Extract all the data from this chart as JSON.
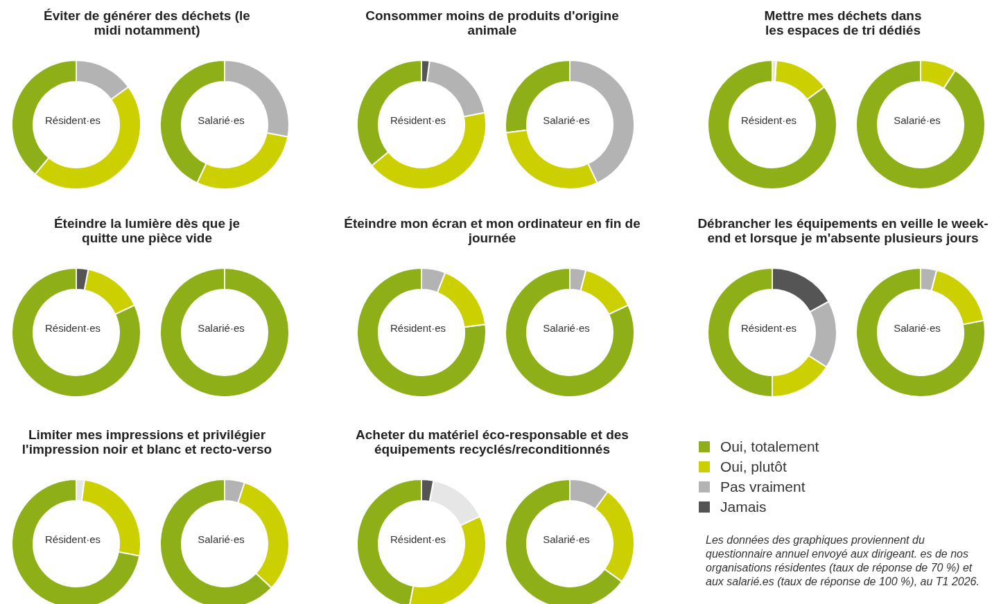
{
  "chart_data": [
    {
      "type": "donut",
      "title": "Éviter de générer des déchets (le midi notamment)",
      "categories": [
        null,
        null,
        null,
        null,
        null
      ],
      "colors": [
        "#8faf18",
        "#cdd000",
        "#b3b3b3",
        "#e6e6e6",
        "#555555"
      ],
      "series": [
        {
          "name": "Résident·es",
          "values": [
            39,
            46,
            15,
            0,
            0
          ]
        },
        {
          "name": "Salarié·es",
          "values": [
            43,
            29,
            28,
            0,
            0
          ]
        }
      ]
    },
    {
      "type": "donut",
      "title": "Consommer moins de produits d'origine animale",
      "categories": [
        null,
        null,
        null,
        null,
        null
      ],
      "colors": [
        "#8faf18",
        "#cdd000",
        "#b3b3b3",
        "#e6e6e6",
        "#555555"
      ],
      "series": [
        {
          "name": "Résident·es",
          "values": [
            36,
            42,
            20,
            0,
            2
          ]
        },
        {
          "name": "Salarié·es",
          "values": [
            27,
            30,
            43,
            0,
            0
          ]
        }
      ]
    },
    {
      "type": "donut",
      "title": "Mettre mes déchets dans les espaces de tri dédiés",
      "categories": [
        null,
        null,
        null,
        null,
        null
      ],
      "colors": [
        "#8faf18",
        "#cdd000",
        "#b3b3b3",
        "#e6e6e6",
        "#555555"
      ],
      "series": [
        {
          "name": "Résident·es",
          "values": [
            85,
            14,
            0,
            1,
            0
          ]
        },
        {
          "name": "Salarié·es",
          "values": [
            91,
            9,
            0,
            0,
            0
          ]
        }
      ]
    },
    {
      "type": "donut",
      "title": "Éteindre la lumière dès que je quitte une pièce vide",
      "categories": [
        null,
        null,
        null,
        null,
        null
      ],
      "colors": [
        "#8faf18",
        "#cdd000",
        "#b3b3b3",
        "#e6e6e6",
        "#555555"
      ],
      "series": [
        {
          "name": "Résident·es",
          "values": [
            82,
            15,
            0,
            0,
            3
          ]
        },
        {
          "name": "Salarié·es",
          "values": [
            100,
            0,
            0,
            0,
            0
          ]
        }
      ]
    },
    {
      "type": "donut",
      "title": "Éteindre mon écran et mon ordinateur en fin de journée",
      "categories": [
        null,
        null,
        null,
        null,
        null
      ],
      "colors": [
        "#8faf18",
        "#cdd000",
        "#b3b3b3",
        "#e6e6e6",
        "#555555"
      ],
      "series": [
        {
          "name": "Résident·es",
          "values": [
            77,
            17,
            6,
            0,
            0
          ]
        },
        {
          "name": "Salarié·es",
          "values": [
            82,
            14,
            4,
            0,
            0
          ]
        }
      ]
    },
    {
      "type": "donut",
      "title": "Débrancher les équipements en veille le week-end et lorsque je m'absente plusieurs jours",
      "categories": [
        null,
        null,
        null,
        null,
        null
      ],
      "colors": [
        "#8faf18",
        "#cdd000",
        "#b3b3b3",
        "#e6e6e6",
        "#555555"
      ],
      "series": [
        {
          "name": "Résident·es",
          "values": [
            50,
            16,
            17,
            0,
            17
          ]
        },
        {
          "name": "Salarié·es",
          "values": [
            78,
            18,
            4,
            0,
            0
          ]
        }
      ]
    },
    {
      "type": "donut",
      "title": "Limiter mes impressions et privilégier l'impression noir et blanc et recto-verso",
      "categories": [
        null,
        null,
        null,
        null,
        null
      ],
      "colors": [
        "#8faf18",
        "#cdd000",
        "#b3b3b3",
        "#e6e6e6",
        "#555555"
      ],
      "series": [
        {
          "name": "Résident·es",
          "values": [
            72,
            26,
            0,
            2,
            0
          ]
        },
        {
          "name": "Salarié·es",
          "values": [
            63,
            32,
            5,
            0,
            0
          ]
        }
      ]
    },
    {
      "type": "donut",
      "title": "Acheter du matériel éco-responsable et des équipements recyclés/reconditionnés",
      "categories": [
        "Oui, totalement",
        "Oui, plutôt",
        "Pas vraiment",
        null,
        "Jamais"
      ],
      "colors": [
        "#8faf18",
        "#cdd000",
        "#b3b3b3",
        "#e6e6e6",
        "#555555"
      ],
      "series": [
        {
          "name": "Résident·es",
          "values": [
            47,
            35,
            0,
            15,
            3
          ]
        },
        {
          "name": "Salarié·es",
          "values": [
            65,
            25,
            10,
            0,
            0
          ]
        }
      ],
      "legend": "right",
      "annotations": [
        "Les données des graphiques proviennent du questionnaire annuel envoyé aux dirigeant. es de nos organisations résidentes (taux de réponse de 70 %) et aux salarié.es (taux de réponse de 100 %), au T1 2026."
      ]
    }
  ]
}
